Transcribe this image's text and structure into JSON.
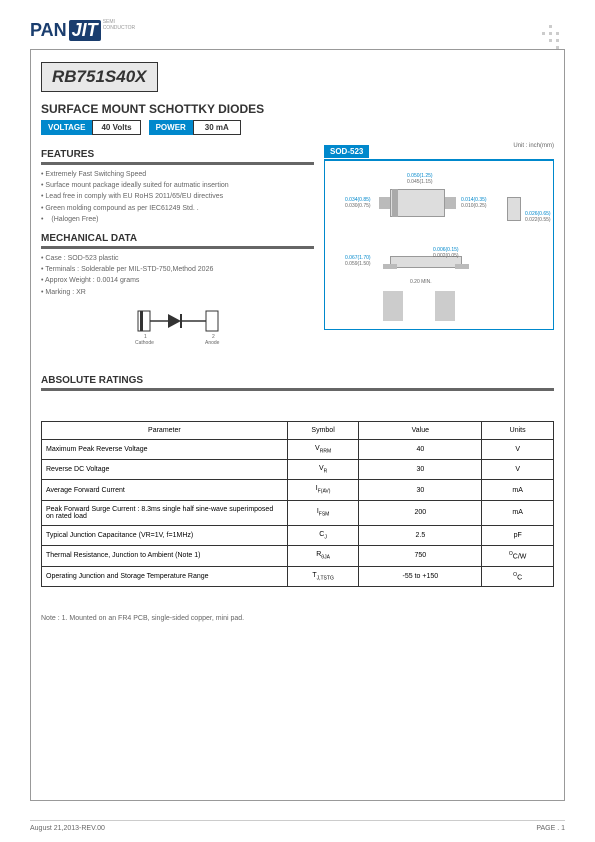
{
  "header": {
    "logo_pan": "PAN",
    "logo_jit": "JIT",
    "logo_sub1": "SEMI",
    "logo_sub2": "CONDUCTOR"
  },
  "part_number": "RB751S40X",
  "subtitle": "SURFACE MOUNT SCHOTTKY DIODES",
  "tags": {
    "voltage_label": "VOLTAGE",
    "voltage_value": "40 Volts",
    "power_label": "POWER",
    "power_value": "30 mA"
  },
  "package": {
    "name": "SOD-523",
    "unit_label": "Unit : inch(mm)",
    "dims": {
      "d1": "0.050(1.25)",
      "d2": "0.045(1.15)",
      "d3": "0.014(0.35)",
      "d4": "0.010(0.25)",
      "d5": "0.026(0.65)",
      "d6": "0.022(0.55)",
      "d7": "0.034(0.85)",
      "d8": "0.030(0.75)",
      "d9": "0.067(1.70)",
      "d10": "0.059(1.50)",
      "d11": "0.006(0.15)",
      "d12": "0.002(0.05)",
      "d13": "0.20 MIN."
    }
  },
  "features_title": "FEATURES",
  "features": [
    "Extremely Fast Switching Speed",
    "Surface mount package ideally suited for autmatic insertion",
    "Lead free in comply with EU RoHS 2011/65/EU directives",
    "Green molding compound as per IEC61249 Std. .",
    "(Halogen Free)"
  ],
  "mechanical_title": "MECHANICAL DATA",
  "mechanical": [
    "Case : SOD-523 plastic",
    "Terminals : Solderable per MIL-STD-750,Method 2026",
    "Approx Weight : 0.0014 grams",
    "Marking : XR"
  ],
  "diode_labels": {
    "cathode": "Cathode",
    "anode": "Anode",
    "pin1": "1",
    "pin2": "2"
  },
  "ratings_title": "ABSOLUTE RATINGS",
  "ratings_headers": {
    "param": "Parameter",
    "symbol": "Symbol",
    "value": "Value",
    "units": "Units"
  },
  "ratings": [
    {
      "param": "Maximum Peak Reverse Voltage",
      "sym": "V",
      "sub": "RRM",
      "val": "40",
      "unit": "V"
    },
    {
      "param": "Reverse DC Voltage",
      "sym": "V",
      "sub": "R",
      "val": "30",
      "unit": "V"
    },
    {
      "param": "Average Forward Current",
      "sym": "I",
      "sub": "F(AV)",
      "val": "30",
      "unit": "mA"
    },
    {
      "param": "Peak Forward Surge Current : 8.3ms single half sine-wave superimposed on rated load",
      "sym": "I",
      "sub": "FSM",
      "val": "200",
      "unit": "mA"
    },
    {
      "param": "Typical Junction Capacitance (VR=1V, f=1MHz)",
      "sym": "C",
      "sub": "J",
      "val": "2.5",
      "unit": "pF"
    },
    {
      "param": "Thermal Resistance, Junction to Ambient (Note 1)",
      "sym": "R",
      "sub": "θJA",
      "val": "750",
      "unit": "°C/W"
    },
    {
      "param": "Operating Junction and Storage Temperature Range",
      "sym": "T",
      "sub": "J,TSTG",
      "val": "-55 to +150",
      "unit": "°C"
    }
  ],
  "note": "Note : 1. Mounted on an FR4 PCB, single-sided copper, mini pad.",
  "footer": {
    "date": "August 21,2013-REV.00",
    "page": "PAGE .  1"
  }
}
